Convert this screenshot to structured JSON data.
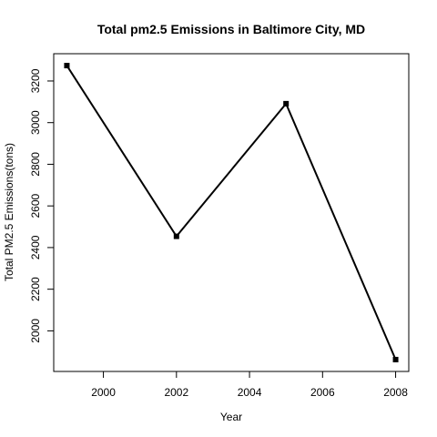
{
  "chart_data": {
    "type": "line",
    "title": "Total pm2.5 Emissions in Baltimore City, MD",
    "xlabel": "Year",
    "ylabel": "Total PM2.5 Emissions(tons)",
    "x": [
      1999,
      2002,
      2005,
      2008
    ],
    "values": [
      3274,
      2454,
      3091,
      1862
    ],
    "xlim": [
      1998.64,
      2008.36
    ],
    "ylim": [
      1805,
      3331
    ],
    "xticks": [
      2000,
      2002,
      2004,
      2006,
      2008
    ],
    "yticks": [
      2000,
      2200,
      2400,
      2600,
      2800,
      3000,
      3200
    ],
    "grid": false,
    "marker": "square",
    "line_color": "#000000"
  }
}
